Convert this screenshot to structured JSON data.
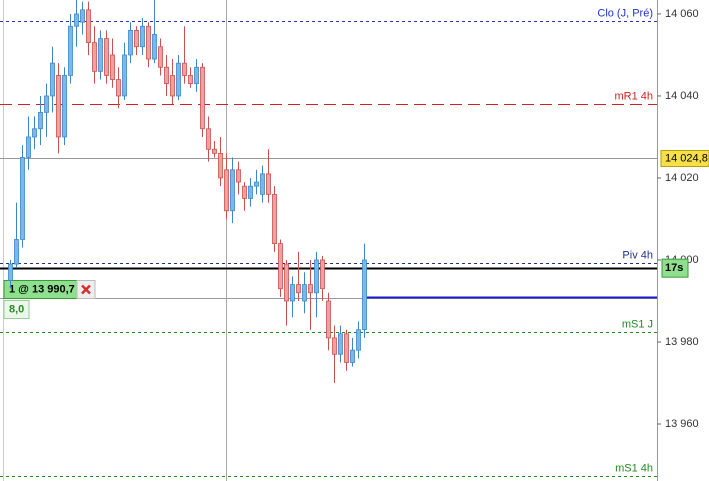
{
  "chart_data": {
    "type": "candlestick",
    "ylim": [
      13946.1,
      14063.4
    ],
    "yticks": [
      {
        "value": 14060,
        "label": "14 060"
      },
      {
        "value": 14040,
        "label": "14 040"
      },
      {
        "value": 14020,
        "label": "14 020"
      },
      {
        "value": 14000,
        "label": "14 000"
      },
      {
        "value": 13980,
        "label": "13 980"
      },
      {
        "value": 13960,
        "label": "13 960"
      }
    ],
    "up_color": "#7bb8ea",
    "down_color": "#f0a0a0",
    "open": [
      13995,
      13999,
      14005,
      14025,
      14030,
      14032,
      14036,
      14040,
      14045,
      14030,
      14045,
      14057,
      14058,
      14061,
      14053,
      14046,
      14054,
      14050,
      14044,
      14040,
      14050,
      14056,
      14052,
      14057,
      14049,
      14052,
      14047,
      14045,
      14040,
      14048,
      14045,
      14043,
      14047,
      14032,
      14027,
      14026,
      14022,
      14012,
      14022,
      14018,
      14015,
      14018,
      14016,
      14021,
      14016,
      14004,
      13999,
      13990,
      13994,
      13990,
      13994,
      13992,
      14000,
      13990,
      13981,
      13977,
      13982,
      13975,
      13978,
      13983
    ],
    "high": [
      14000,
      14014,
      14028,
      14035,
      14035,
      14040,
      14043,
      14052,
      14048,
      14047,
      14060,
      14064,
      14063,
      14063,
      14057,
      14056,
      14056,
      14054,
      14047,
      14053,
      14058,
      14057,
      14059,
      14058,
      14064,
      14054,
      14050,
      14049,
      14050,
      14057,
      14047,
      14049,
      14048,
      14035,
      14029,
      14030,
      14026,
      14025,
      14024,
      14019,
      14020,
      14022,
      14023,
      14027,
      14018,
      14005,
      14000,
      13996,
      14002,
      13997,
      14000,
      14002,
      14001,
      13992,
      13984,
      13984,
      13983,
      13981,
      13985,
      14004
    ],
    "low": [
      13993,
      13998,
      14003,
      14022,
      14027,
      14028,
      14030,
      14036,
      14026,
      14028,
      14043,
      14052,
      14055,
      14050,
      14043,
      14044,
      14043,
      14042,
      14037,
      14039,
      14048,
      14050,
      14050,
      14047,
      14048,
      14045,
      14040,
      14038,
      14039,
      14043,
      14042,
      14041,
      14030,
      14024,
      14025,
      14018,
      14010,
      14009,
      14016,
      14012,
      14013,
      14016,
      14014,
      14014,
      14002,
      13991,
      13984,
      13986,
      13990,
      13987,
      13983,
      13986,
      13990,
      13978,
      13970,
      13975,
      13973,
      13974,
      13976,
      13981
    ],
    "close": [
      13999,
      14005,
      14025,
      14030,
      14032,
      14036,
      14040,
      14048,
      14030,
      14045,
      14057,
      14060,
      14061,
      14053,
      14046,
      14054,
      14045,
      14044,
      14040,
      14050,
      14056,
      14052,
      14057,
      14049,
      14055,
      14047,
      14043,
      14040,
      14048,
      14045,
      14043,
      14047,
      14032,
      14027,
      14026,
      14020,
      14012,
      14022,
      14019,
      14015,
      14018,
      14019,
      14021,
      14016,
      14004,
      13993,
      13990,
      13994,
      13992,
      13994,
      13992,
      14000,
      13993,
      13981,
      13977,
      13982,
      13975,
      13978,
      13983,
      14000
    ],
    "levels": [
      {
        "label": "Clo (J, Pré)",
        "value": 14058.3,
        "color": "#2233cc",
        "style": "dashed"
      },
      {
        "label": "mR1 4h",
        "value": 14038,
        "color": "#cc2222",
        "style": "long-dash"
      },
      {
        "label": "Piv 4h",
        "value": 13999.3,
        "color": "#223388",
        "style": "dashed"
      },
      {
        "label": "mS1 J",
        "value": 13982.4,
        "color": "#228822",
        "style": "dashed"
      },
      {
        "label": "mS1 4h",
        "value": 13947.3,
        "color": "#228822",
        "style": "dashed"
      }
    ],
    "price_line": {
      "value": 14024.8,
      "label": "14 024,8"
    },
    "last_line": {
      "value": 13998
    },
    "order": {
      "value": 13990.7,
      "label": "1 @ 13 990,7",
      "pnl": "8,0"
    },
    "timer": "17s"
  }
}
